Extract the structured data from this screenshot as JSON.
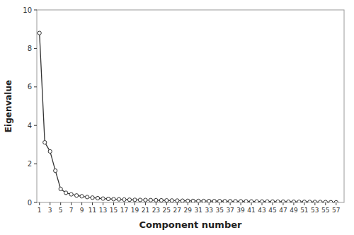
{
  "chart_data": {
    "type": "line",
    "x": [
      1,
      2,
      3,
      4,
      5,
      6,
      7,
      8,
      9,
      10,
      11,
      12,
      13,
      14,
      15,
      16,
      17,
      18,
      19,
      20,
      21,
      22,
      23,
      24,
      25,
      26,
      27,
      28,
      29,
      30,
      31,
      32,
      33,
      34,
      35,
      36,
      37,
      38,
      39,
      40,
      41,
      42,
      43,
      44,
      45,
      46,
      47,
      48,
      49,
      50,
      51,
      52,
      53,
      54,
      55,
      56,
      57
    ],
    "values": [
      8.8,
      3.12,
      2.65,
      1.65,
      0.7,
      0.5,
      0.42,
      0.36,
      0.32,
      0.28,
      0.25,
      0.22,
      0.2,
      0.185,
      0.17,
      0.16,
      0.15,
      0.14,
      0.135,
      0.13,
      0.125,
      0.12,
      0.115,
      0.11,
      0.105,
      0.1,
      0.095,
      0.09,
      0.085,
      0.08,
      0.078,
      0.075,
      0.072,
      0.07,
      0.068,
      0.065,
      0.063,
      0.06,
      0.058,
      0.055,
      0.052,
      0.05,
      0.048,
      0.046,
      0.044,
      0.042,
      0.04,
      0.038,
      0.035,
      0.032,
      0.03,
      0.027,
      0.025,
      0.022,
      0.018,
      0.012,
      0.005
    ],
    "xlabel": "Component number",
    "ylabel": "Eigenvalue",
    "xlim": [
      0.5,
      58.5
    ],
    "ylim": [
      0,
      10
    ],
    "xticks": [
      1,
      3,
      5,
      7,
      9,
      11,
      13,
      15,
      17,
      19,
      21,
      23,
      25,
      27,
      29,
      31,
      33,
      35,
      37,
      39,
      41,
      43,
      45,
      47,
      49,
      51,
      53,
      55,
      57
    ],
    "yticks": [
      0,
      2,
      4,
      6,
      8,
      10
    ],
    "color": "#333333",
    "marker": "circle",
    "grid": false
  }
}
